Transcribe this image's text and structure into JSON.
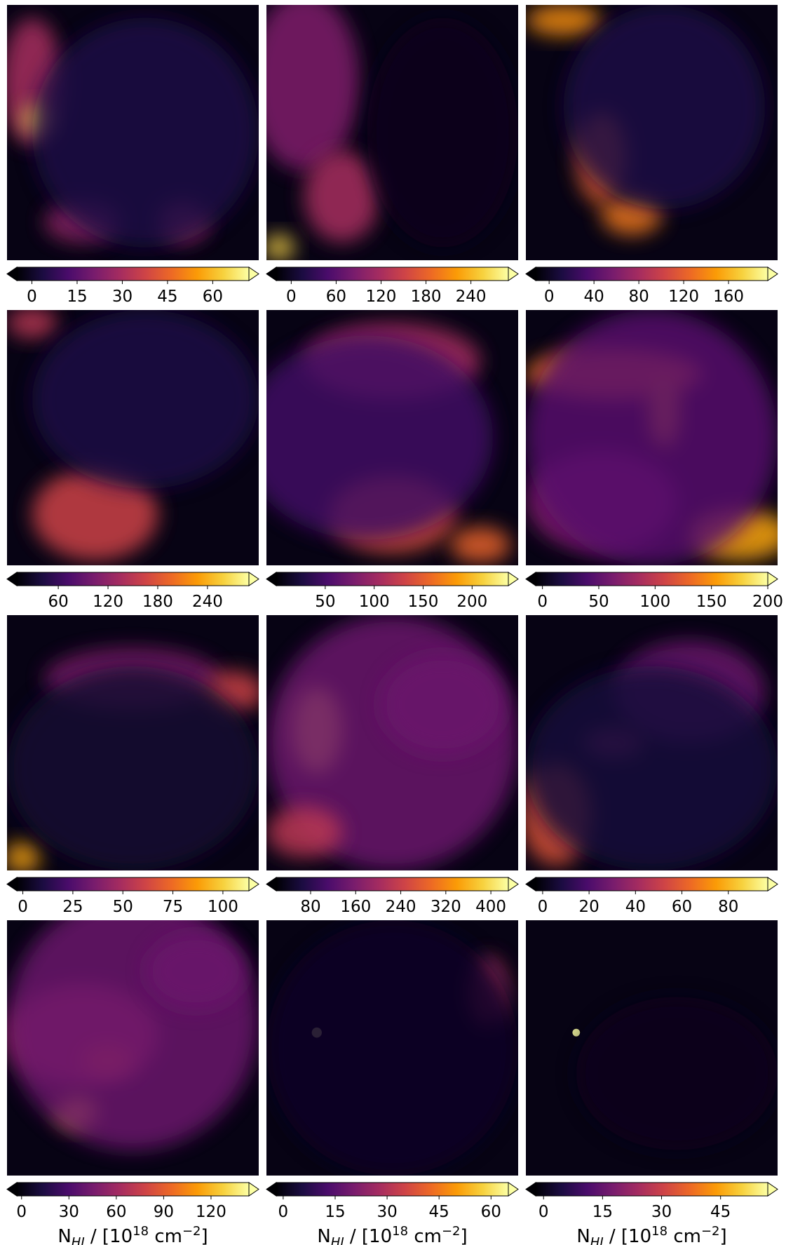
{
  "figure": {
    "colormap": "inferno",
    "colormap_stops": [
      "#000004",
      "#1b0c41",
      "#4a0c6b",
      "#781c6d",
      "#a52c60",
      "#cf4446",
      "#ed6925",
      "#fb9b06",
      "#f7d13d",
      "#fcffa4"
    ]
  },
  "chart_data": [
    {
      "type": "heatmap",
      "panel": "row1-col1",
      "colorbar_ticks": [
        "0",
        "15",
        "30",
        "45",
        "60"
      ],
      "vmin": -5,
      "vmax": 72,
      "colorbar_extend": "both",
      "xlabel": ""
    },
    {
      "type": "heatmap",
      "panel": "row1-col2",
      "colorbar_ticks": [
        "0",
        "60",
        "120",
        "180",
        "240"
      ],
      "vmin": -20,
      "vmax": 290,
      "colorbar_extend": "both",
      "xlabel": ""
    },
    {
      "type": "heatmap",
      "panel": "row1-col3",
      "colorbar_ticks": [
        "0",
        "40",
        "80",
        "120",
        "160"
      ],
      "vmin": -12,
      "vmax": 195,
      "colorbar_extend": "both",
      "xlabel": ""
    },
    {
      "type": "heatmap",
      "panel": "row2-col1",
      "colorbar_ticks": [
        "60",
        "120",
        "180",
        "240"
      ],
      "vmin": 10,
      "vmax": 290,
      "colorbar_extend": "both",
      "xlabel": ""
    },
    {
      "type": "heatmap",
      "panel": "row2-col2",
      "colorbar_ticks": [
        "50",
        "100",
        "150",
        "200"
      ],
      "vmin": 0,
      "vmax": 237,
      "colorbar_extend": "both",
      "xlabel": ""
    },
    {
      "type": "heatmap",
      "panel": "row2-col3",
      "colorbar_ticks": [
        "0",
        "50",
        "100",
        "150",
        "200"
      ],
      "vmin": -6,
      "vmax": 200,
      "colorbar_extend": "both",
      "xlabel": ""
    },
    {
      "type": "heatmap",
      "panel": "row3-col1",
      "colorbar_ticks": [
        "0",
        "25",
        "50",
        "75",
        "100"
      ],
      "vmin": -3,
      "vmax": 113,
      "colorbar_extend": "both",
      "xlabel": ""
    },
    {
      "type": "heatmap",
      "panel": "row3-col2",
      "colorbar_ticks": [
        "80",
        "160",
        "240",
        "320",
        "400"
      ],
      "vmin": 19,
      "vmax": 431,
      "colorbar_extend": "both",
      "xlabel": ""
    },
    {
      "type": "heatmap",
      "panel": "row3-col3",
      "colorbar_ticks": [
        "0",
        "20",
        "40",
        "60",
        "80"
      ],
      "vmin": -3,
      "vmax": 97,
      "colorbar_extend": "both",
      "xlabel": ""
    },
    {
      "type": "heatmap",
      "panel": "row4-col1",
      "colorbar_ticks": [
        "0",
        "30",
        "60",
        "90",
        "120"
      ],
      "vmin": -3,
      "vmax": 144,
      "colorbar_extend": "both",
      "xlabel": "N_HI / [10^18 cm^-2]"
    },
    {
      "type": "heatmap",
      "panel": "row4-col2",
      "colorbar_ticks": [
        "0",
        "15",
        "30",
        "45",
        "60"
      ],
      "vmin": -2,
      "vmax": 65,
      "colorbar_extend": "both",
      "xlabel": "N_HI / [10^18 cm^-2]"
    },
    {
      "type": "heatmap",
      "panel": "row4-col3",
      "colorbar_ticks": [
        "0",
        "15",
        "30",
        "45"
      ],
      "vmin": -2,
      "vmax": 57,
      "colorbar_extend": "both",
      "xlabel": "N_HI / [10^18 cm^-2]"
    }
  ]
}
